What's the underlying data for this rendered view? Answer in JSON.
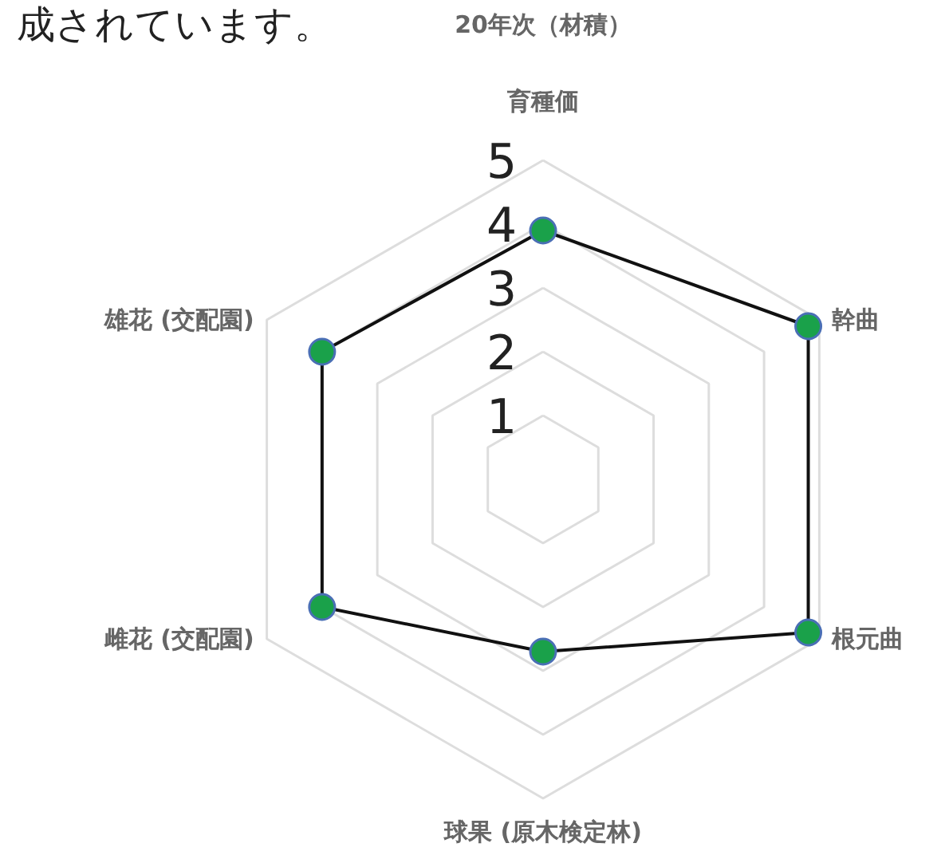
{
  "chart_data": {
    "type": "radar",
    "title": "20年次（材積）",
    "categories": [
      "育種価",
      "幹曲",
      "根元曲",
      "球果 (原木検定林)",
      "雌花 (交配園)",
      "雄花 (交配園)"
    ],
    "series": [
      {
        "color": "#111111",
        "colors": [
          "#1aa14a",
          "#1aa14a",
          "#1aa14a",
          "#1aa14a",
          "#1aa14a",
          "#1aa14a"
        ],
        "values": [
          3.9,
          4.8,
          4.8,
          2.7,
          4.0,
          4.0
        ]
      }
    ],
    "ylim": [
      0,
      5
    ],
    "yticks": [
      1,
      2,
      3,
      4,
      5
    ],
    "grid": true,
    "marker": "circle",
    "line_style": "solid",
    "annotations": [
      "成されています。"
    ]
  }
}
